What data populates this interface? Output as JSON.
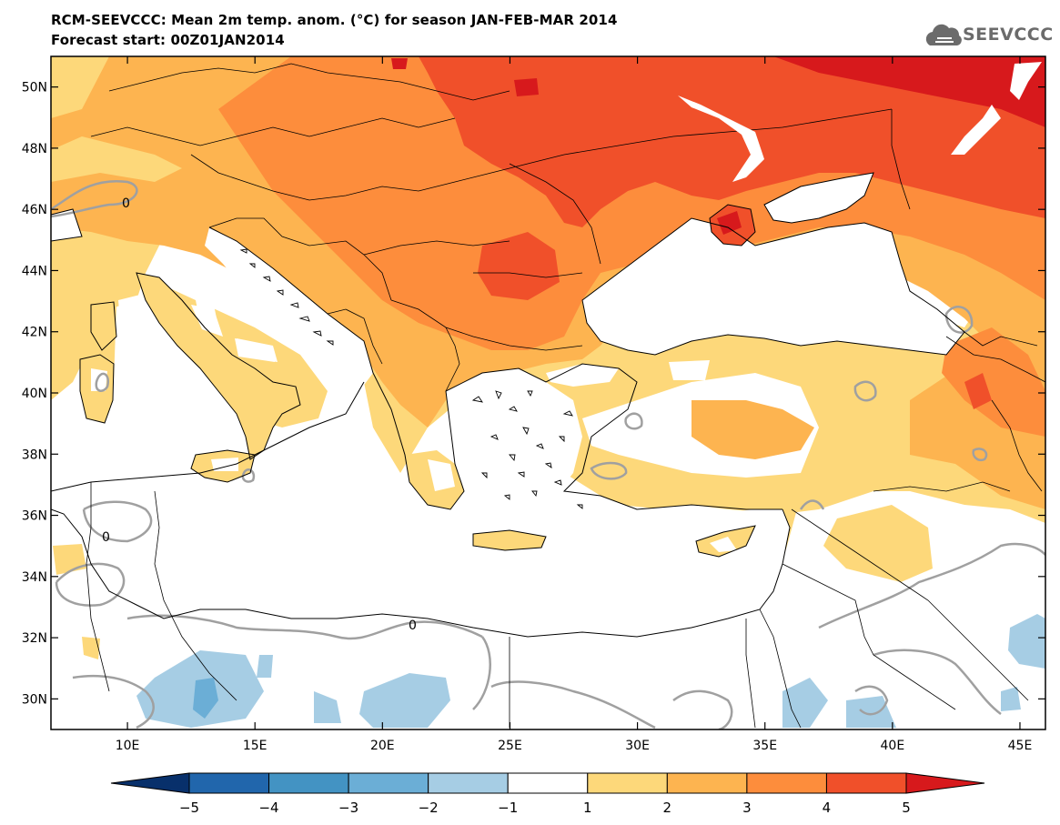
{
  "header": {
    "line1": "RCM-SEEVCCC: Mean 2m temp. anom. (°C) for season JAN-FEB-MAR 2014",
    "line2": "Forecast start: 00Z01JAN2014"
  },
  "logo": {
    "text": "SEEVCCC",
    "icon": "cloud-icon"
  },
  "map": {
    "lon_range": [
      7,
      46
    ],
    "lat_range": [
      29,
      51
    ],
    "lat_ticks": [
      {
        "value": 50,
        "label": "50N"
      },
      {
        "value": 48,
        "label": "48N"
      },
      {
        "value": 46,
        "label": "46N"
      },
      {
        "value": 44,
        "label": "44N"
      },
      {
        "value": 42,
        "label": "42N"
      },
      {
        "value": 40,
        "label": "40N"
      },
      {
        "value": 38,
        "label": "38N"
      },
      {
        "value": 36,
        "label": "36N"
      },
      {
        "value": 34,
        "label": "34N"
      },
      {
        "value": 32,
        "label": "32N"
      },
      {
        "value": 30,
        "label": "30N"
      }
    ],
    "lon_ticks": [
      {
        "value": 10,
        "label": "10E"
      },
      {
        "value": 15,
        "label": "15E"
      },
      {
        "value": 20,
        "label": "20E"
      },
      {
        "value": 25,
        "label": "25E"
      },
      {
        "value": 30,
        "label": "30E"
      },
      {
        "value": 35,
        "label": "35E"
      },
      {
        "value": 40,
        "label": "40E"
      },
      {
        "value": 45,
        "label": "45E"
      }
    ],
    "contour_label": "0",
    "sea_color": "#ffffff"
  },
  "colorbar": {
    "bins": [
      {
        "lo": "-inf",
        "hi": -5,
        "color": "#08306b"
      },
      {
        "lo": -5,
        "hi": -4,
        "color": "#2166ac"
      },
      {
        "lo": -4,
        "hi": -3,
        "color": "#4393c3"
      },
      {
        "lo": -3,
        "hi": -2,
        "color": "#6baed6"
      },
      {
        "lo": -2,
        "hi": -1,
        "color": "#a6cde4"
      },
      {
        "lo": -1,
        "hi": 1,
        "color": "#ffffff"
      },
      {
        "lo": 1,
        "hi": 2,
        "color": "#fdd87a"
      },
      {
        "lo": 2,
        "hi": 3,
        "color": "#fdb450"
      },
      {
        "lo": 3,
        "hi": 4,
        "color": "#fd8d3c"
      },
      {
        "lo": 4,
        "hi": 5,
        "color": "#f0502a"
      },
      {
        "lo": 5,
        "hi": "inf",
        "color": "#d7191c"
      }
    ],
    "labels": [
      "-5",
      "-4",
      "-3",
      "-2",
      "-1",
      "1",
      "2",
      "3",
      "4",
      "5"
    ]
  }
}
